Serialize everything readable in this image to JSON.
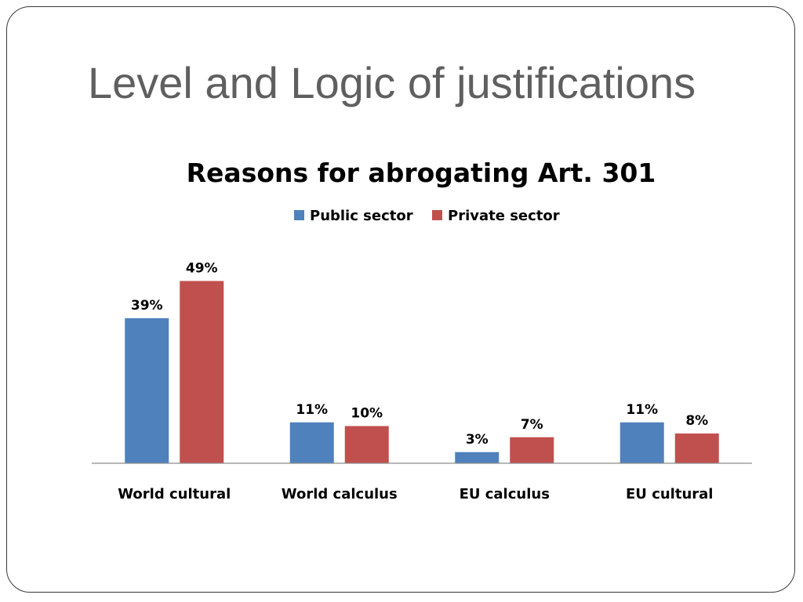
{
  "slide": {
    "title": "Level and Logic of justifications"
  },
  "colors": {
    "public": "#4f81bd",
    "private": "#c0504d",
    "frame": "#3a3a3a",
    "title": "#5f5f5f"
  },
  "chart_data": {
    "type": "bar",
    "title": "Reasons for abrogating Art. 301",
    "legend_position": "top",
    "grid": false,
    "ylim": [
      0,
      55
    ],
    "categories": [
      "World cultural",
      "World calculus",
      "EU calculus",
      "EU cultural"
    ],
    "series": [
      {
        "name": "Public sector",
        "color": "#4f81bd",
        "values": [
          39,
          11,
          3,
          11
        ],
        "labels": [
          "39%",
          "11%",
          "3%",
          "11%"
        ]
      },
      {
        "name": "Private sector",
        "color": "#c0504d",
        "values": [
          49,
          10,
          7,
          8
        ],
        "labels": [
          "49%",
          "10%",
          "7%",
          "8%"
        ]
      }
    ]
  }
}
